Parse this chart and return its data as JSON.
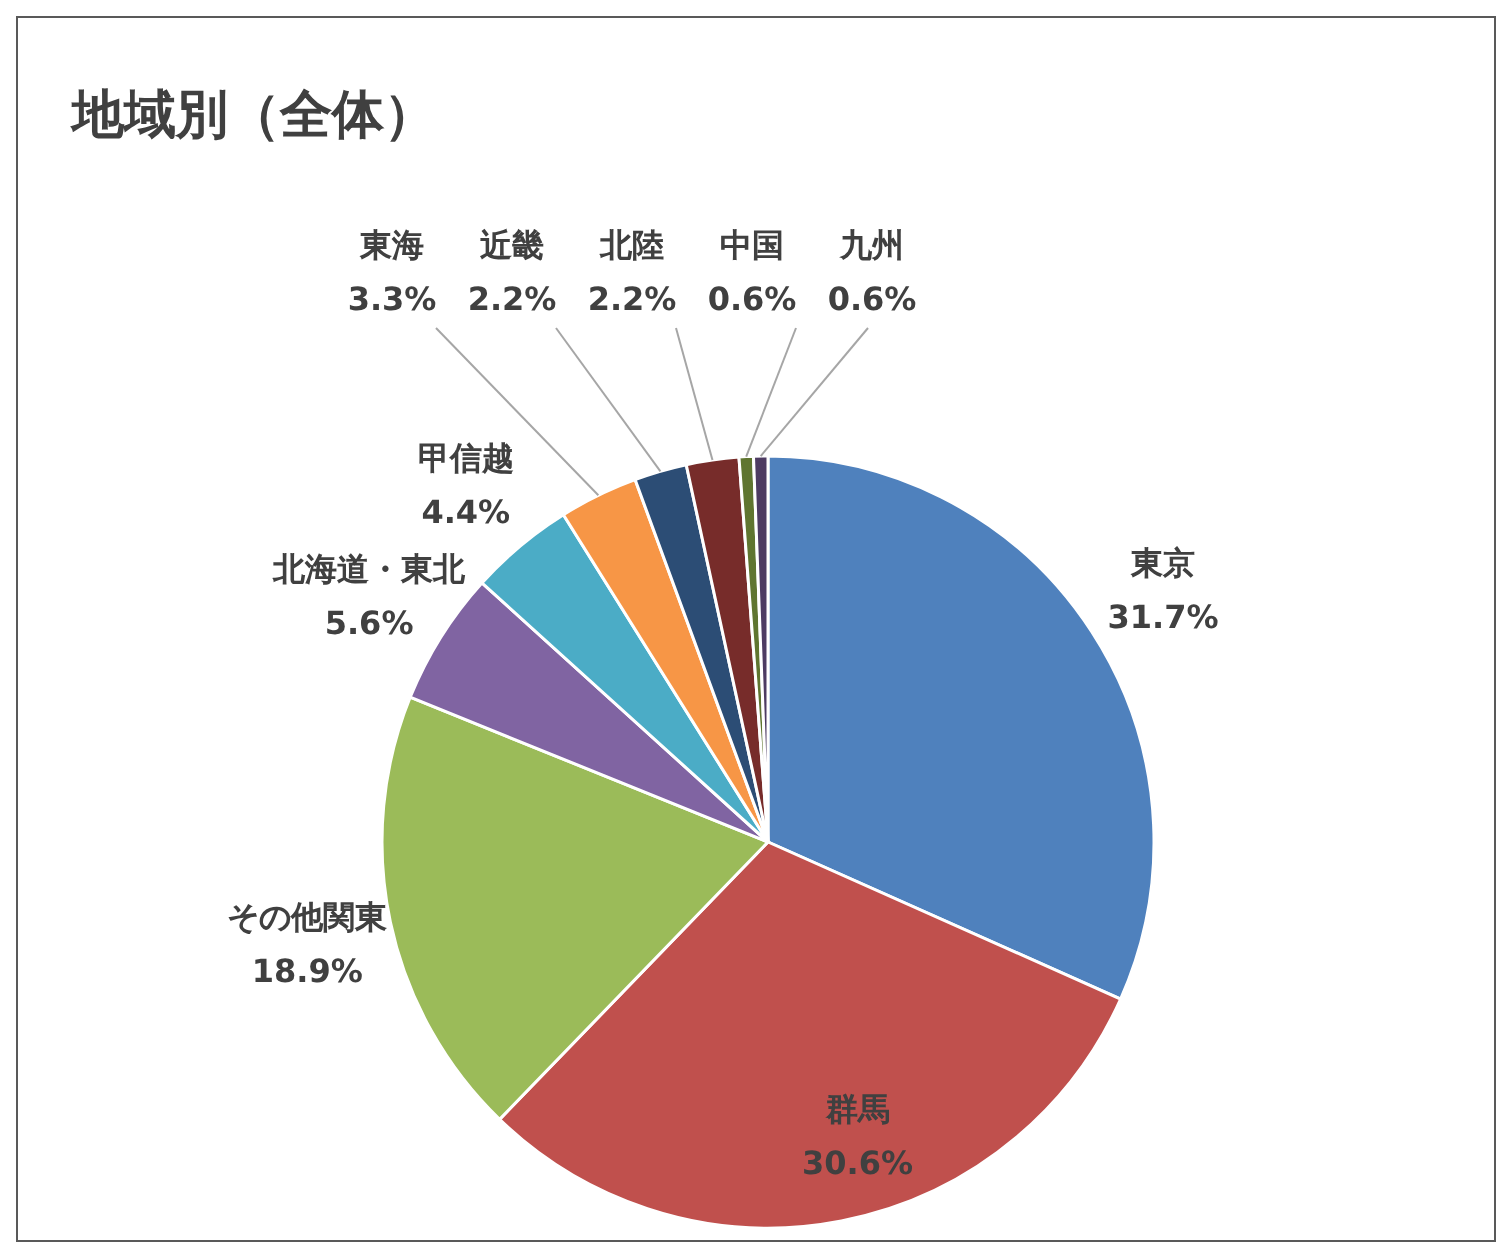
{
  "chart_data": {
    "type": "pie",
    "title": "地域別（全体）",
    "categories": [
      "東京",
      "群馬",
      "その他関東",
      "北海道・東北",
      "甲信越",
      "東海",
      "近畿",
      "北陸",
      "中国",
      "九州"
    ],
    "values": [
      31.7,
      30.6,
      18.9,
      5.6,
      4.4,
      3.3,
      2.2,
      2.2,
      0.6,
      0.6
    ],
    "colors": [
      "#4f81bd",
      "#c0504d",
      "#9bbb59",
      "#8064a2",
      "#4bacc6",
      "#f79646",
      "#2c4d75",
      "#772c2a",
      "#5f7530",
      "#4d3b62"
    ],
    "value_labels": [
      "31.7%",
      "30.6%",
      "18.9%",
      "5.6%",
      "4.4%",
      "3.3%",
      "2.2%",
      "2.2%",
      "0.6%",
      "0.6%"
    ]
  }
}
